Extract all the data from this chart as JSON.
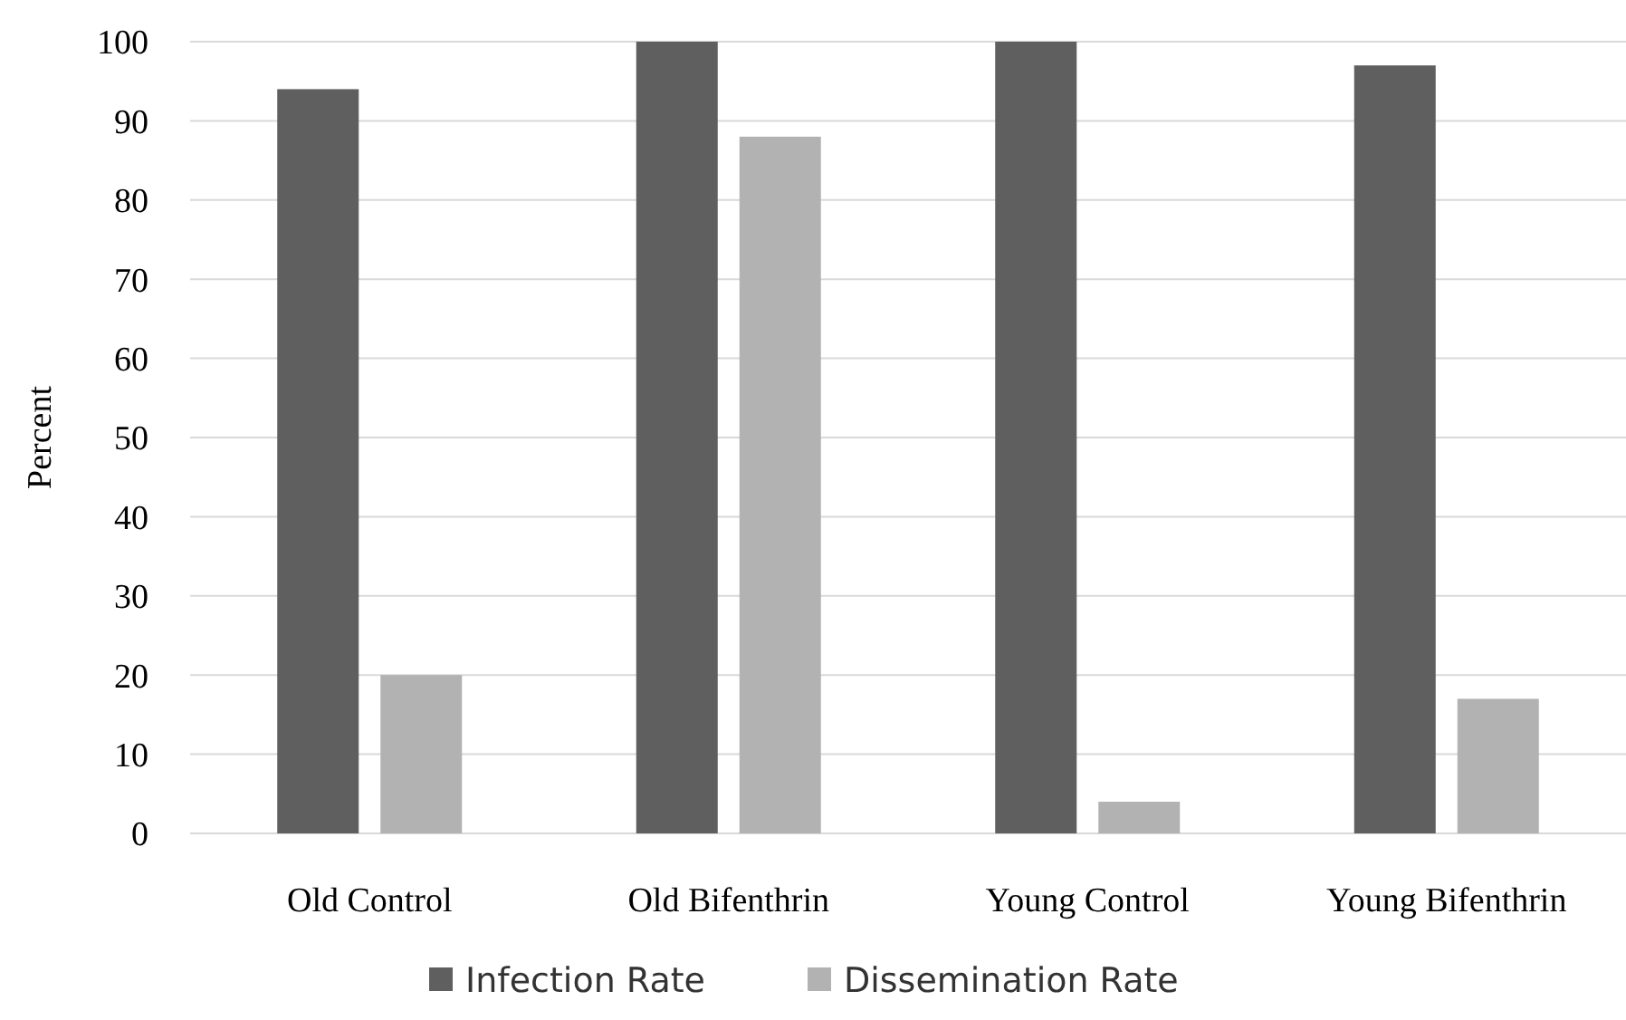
{
  "chart_data": {
    "type": "bar",
    "ylabel": "Percent",
    "categories": [
      "Old Control",
      "Old Bifenthrin",
      "Young Control",
      "Young Bifenthrin"
    ],
    "series": [
      {
        "name": "Infection Rate",
        "color": "#5f5f5f",
        "values": [
          94,
          100,
          100,
          97
        ]
      },
      {
        "name": "Dissemination Rate",
        "color": "#b2b2b2",
        "values": [
          20,
          88,
          4,
          17
        ]
      }
    ],
    "ylim": [
      0,
      100
    ],
    "yticks": [
      0,
      10,
      20,
      30,
      40,
      50,
      60,
      70,
      80,
      90,
      100
    ],
    "grid": "y",
    "legend": "bottom"
  }
}
